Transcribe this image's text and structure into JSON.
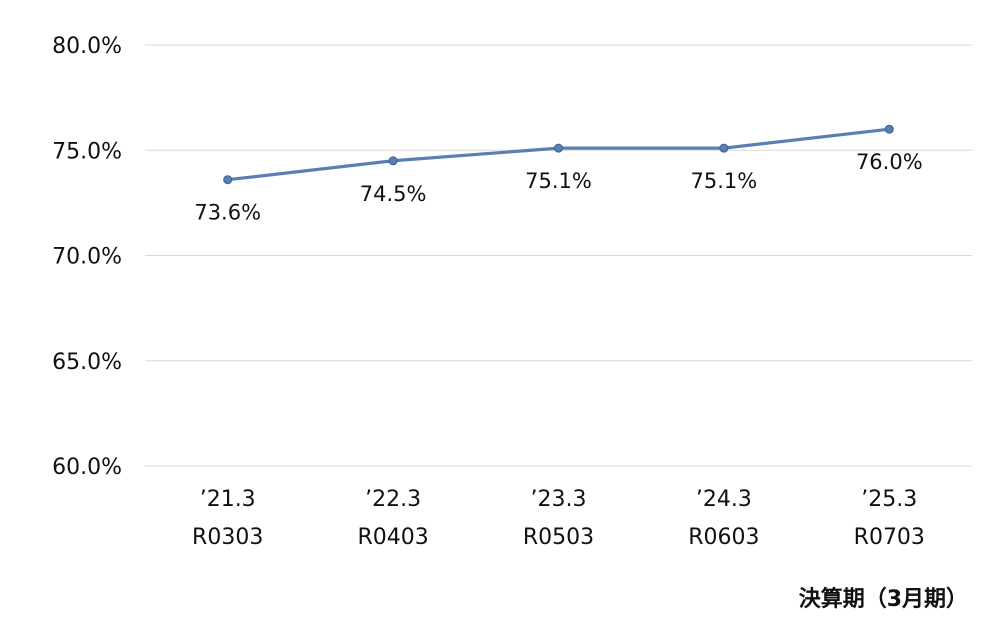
{
  "chart_data": {
    "type": "line",
    "categories": [
      [
        "’21.3",
        "R0303"
      ],
      [
        "’22.3",
        "R0403"
      ],
      [
        "’23.3",
        "R0503"
      ],
      [
        "’24.3",
        "R0603"
      ],
      [
        "’25.3",
        "R0703"
      ]
    ],
    "series": [
      {
        "values": [
          73.6,
          74.5,
          75.1,
          75.1,
          76.0
        ],
        "labels": [
          "73.6%",
          "74.5%",
          "75.1%",
          "75.1%",
          "76.0%"
        ],
        "color": "#5a7fb2"
      }
    ],
    "xlabel": "決算期（3月期）",
    "ylabel": "",
    "ylim": [
      60,
      80
    ],
    "yticks": [
      {
        "value": 60,
        "label": "60.0%"
      },
      {
        "value": 65,
        "label": "65.0%"
      },
      {
        "value": 70,
        "label": "70.0%"
      },
      {
        "value": 75,
        "label": "75.0%"
      },
      {
        "value": 80,
        "label": "80.0%"
      }
    ],
    "grid": true,
    "legend": "none"
  }
}
